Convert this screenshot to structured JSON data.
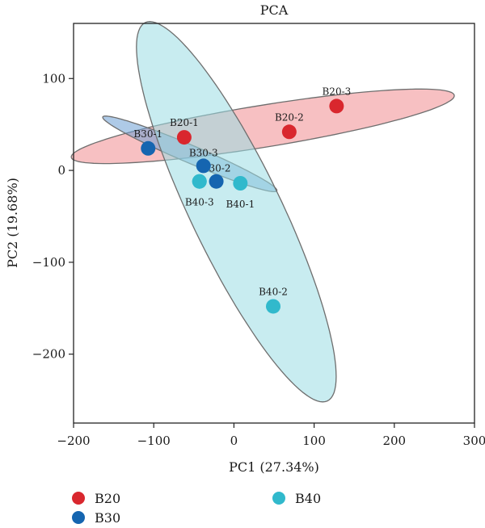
{
  "chart_data": {
    "type": "scatter",
    "title": "PCA",
    "xlabel": "PC1 (27.34%)",
    "ylabel": "PC2 (19.68%)",
    "xlim": [
      -200,
      300
    ],
    "ylim": [
      -275,
      160
    ],
    "xticks": [
      -200,
      -100,
      0,
      100,
      200,
      300
    ],
    "yticks": [
      -200,
      -100,
      0,
      100
    ],
    "grid": false,
    "legend_position": "bottom",
    "series": [
      {
        "name": "B20",
        "color": "#d9272e",
        "fill": "#f08c8f",
        "points": [
          {
            "label": "B20-1",
            "x": -62,
            "y": 36
          },
          {
            "label": "B20-2",
            "x": 69,
            "y": 42
          },
          {
            "label": "B20-3",
            "x": 128,
            "y": 70
          }
        ],
        "ellipse": {
          "cx": 36,
          "cy": 48,
          "rx": 240,
          "ry": 26,
          "angle_deg": 9.2
        }
      },
      {
        "name": "B30",
        "color": "#1565b0",
        "fill": "#6b9fd4",
        "points": [
          {
            "label": "B30-1",
            "x": -107,
            "y": 24
          },
          {
            "label": "B30-2",
            "x": -22,
            "y": -12
          },
          {
            "label": "B30-3",
            "x": -38,
            "y": 5
          }
        ],
        "ellipse": {
          "cx": -55,
          "cy": 18,
          "rx": 117,
          "ry": 11,
          "angle_deg": -23
        }
      },
      {
        "name": "B40",
        "color": "#31b9cc",
        "fill": "#9adce4",
        "points": [
          {
            "label": "B40-1",
            "x": 8,
            "y": -14
          },
          {
            "label": "B40-2",
            "x": 49,
            "y": -148
          },
          {
            "label": "B40-3",
            "x": -43,
            "y": -12
          },
          {
            "label": "",
            "x": -43,
            "y": -12
          }
        ],
        "ellipse": {
          "cx": 3,
          "cy": -45,
          "rx": 260,
          "ry": 56,
          "angle_deg": -64.3
        }
      }
    ]
  }
}
